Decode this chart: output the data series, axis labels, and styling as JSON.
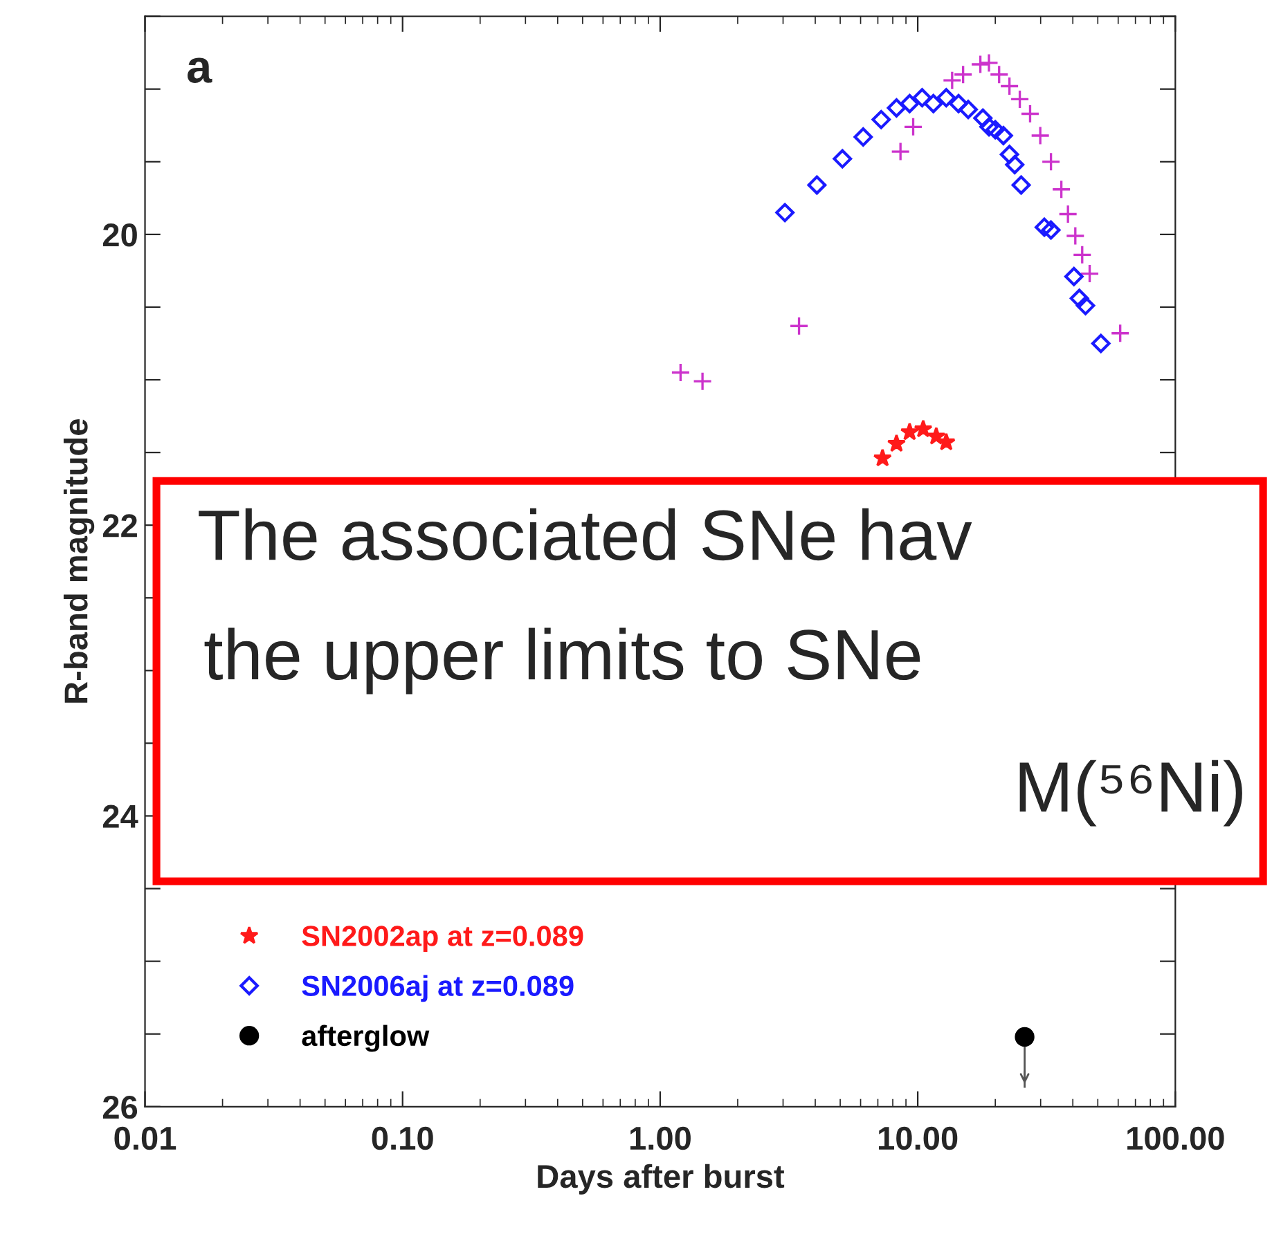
{
  "chart_data": {
    "type": "scatter",
    "xlabel": "Days after burst",
    "ylabel": "R-band magnitude",
    "log": "x",
    "xlim": [
      0.01,
      100
    ],
    "xticks": [
      {
        "value": 0.01,
        "label": "0.01"
      },
      {
        "value": 0.1,
        "label": "0.10"
      },
      {
        "value": 1,
        "label": "1.00"
      },
      {
        "value": 10,
        "label": "10.00"
      },
      {
        "value": 100,
        "label": "100.00"
      }
    ],
    "ylim": [
      26,
      18.5
    ],
    "yticks": [
      {
        "value": 18.5,
        "label": null
      },
      {
        "value": 19,
        "label": null
      },
      {
        "value": 19.5,
        "label": null
      },
      20,
      {
        "value": 20.5,
        "label": null
      },
      {
        "value": 21,
        "label": null
      },
      {
        "value": 21.5,
        "label": null
      },
      22,
      {
        "value": 22.5,
        "label": null
      },
      {
        "value": 23,
        "label": null
      },
      {
        "value": 23.5,
        "label": null
      },
      24,
      {
        "value": 24.5,
        "label": null
      },
      {
        "value": 25,
        "label": null
      },
      {
        "value": 25.5,
        "label": null
      },
      26
    ],
    "grid": false,
    "legend": "bottom left",
    "series": [
      {
        "color": "#cc33cc",
        "marker": "cross",
        "x": [
          1.2,
          1.46,
          3.46,
          8.57,
          9.6,
          13.6,
          15.0,
          17.5,
          18.9,
          20.7,
          22.7,
          24.9,
          27.3,
          29.9,
          32.9,
          36.1,
          38.3,
          40.9,
          43.5,
          46.5,
          61.1
        ],
        "values": [
          20.95,
          21.01,
          20.63,
          19.43,
          19.26,
          18.94,
          18.9,
          18.83,
          18.82,
          18.9,
          18.98,
          19.07,
          19.17,
          19.32,
          19.5,
          19.69,
          19.86,
          20.01,
          20.14,
          20.27,
          20.68
        ]
      },
      {
        "name": "SN2002ap at z=0.089",
        "color": "#ff1a1a",
        "marker": "star",
        "x": [
          7.3,
          8.27,
          9.3,
          10.5,
          11.8,
          12.9
        ],
        "values": [
          21.54,
          21.44,
          21.36,
          21.34,
          21.39,
          21.43
        ]
      },
      {
        "name": "SN2006aj at z=0.089",
        "color": "#1a1aff",
        "marker": "diamond",
        "x": [
          3.05,
          4.06,
          5.1,
          6.14,
          7.21,
          8.27,
          9.3,
          10.4,
          11.5,
          12.9,
          14.4,
          15.7,
          17.9,
          18.9,
          20.0,
          21.5,
          22.7,
          23.8,
          25.2,
          31.0,
          32.9,
          40.4,
          42.4,
          44.8,
          51.4
        ],
        "values": [
          19.85,
          19.66,
          19.48,
          19.33,
          19.21,
          19.13,
          19.1,
          19.06,
          19.1,
          19.06,
          19.1,
          19.14,
          19.2,
          19.26,
          19.28,
          19.32,
          19.45,
          19.52,
          19.66,
          19.95,
          19.97,
          20.29,
          20.44,
          20.49,
          20.75
        ]
      },
      {
        "name": "afterglow",
        "color": "#000000",
        "marker": "circle",
        "x": [
          26.0
        ],
        "values": [
          25.52
        ],
        "errors": [
          [
            25.52,
            25.87
          ]
        ]
      }
    ],
    "annotations": [
      "a",
      "The associated SNe hav",
      "the upper limits to SNe",
      "M(⁵⁶Ni)"
    ]
  }
}
